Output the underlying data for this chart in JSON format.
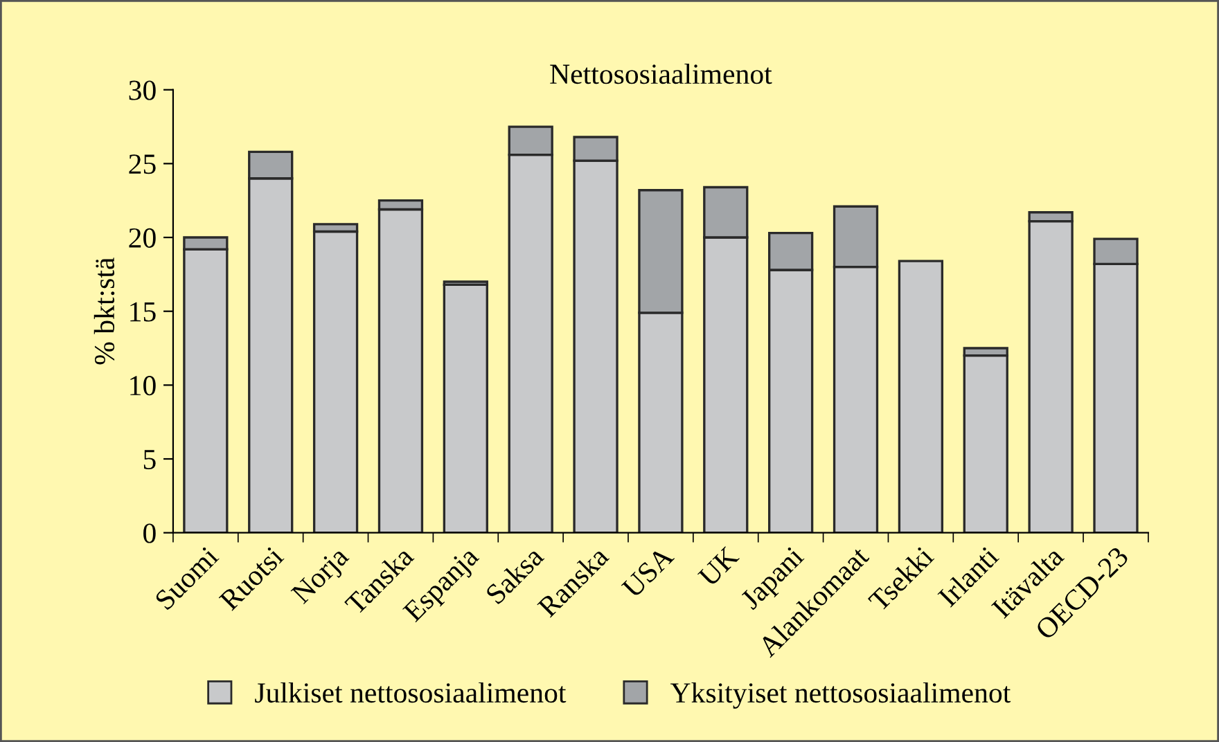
{
  "chart_data": {
    "type": "bar",
    "title": "Nettososiaalimenot",
    "ylabel": "% bkt:stä",
    "categories": [
      "Suomi",
      "Ruotsi",
      "Norja",
      "Tanska",
      "Espanja",
      "Saksa",
      "Ranska",
      "USA",
      "UK",
      "Japani",
      "Alankomaat",
      "Tsekki",
      "Irlanti",
      "Itävalta",
      "OECD-23"
    ],
    "series": [
      {
        "name": "Julkiset nettososiaalimenot",
        "color": "#c8c9cb",
        "values": [
          19.2,
          24.0,
          20.4,
          21.9,
          16.8,
          25.6,
          25.2,
          14.9,
          20.0,
          17.8,
          18.0,
          18.4,
          12.0,
          21.1,
          18.2
        ]
      },
      {
        "name": "Yksityiset nettososiaalimenot",
        "color": "#a2a5a8",
        "values": [
          0.8,
          1.8,
          0.5,
          0.6,
          0.2,
          1.9,
          1.6,
          8.3,
          3.4,
          2.5,
          4.1,
          null,
          0.5,
          0.6,
          1.7
        ]
      }
    ],
    "stacked": true,
    "ylim": [
      0,
      30
    ],
    "yticks": [
      0,
      5,
      10,
      15,
      20,
      25,
      30
    ],
    "grid": false,
    "legend": "bottom"
  }
}
